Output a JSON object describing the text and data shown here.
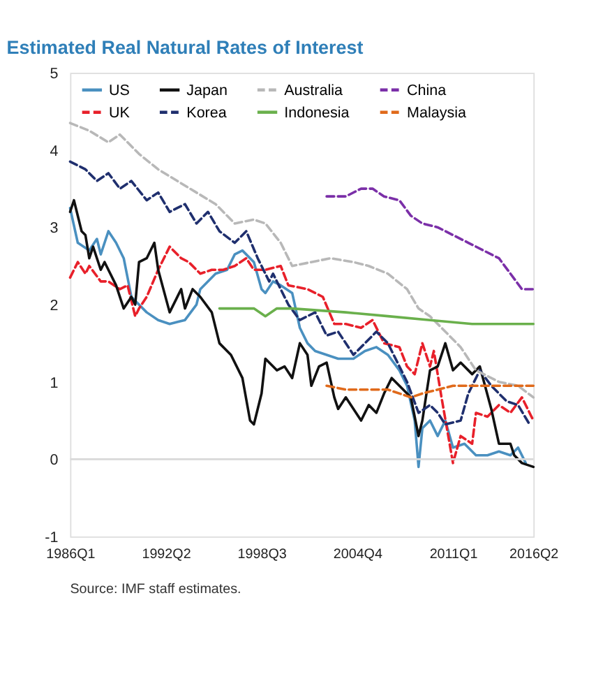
{
  "chart_data": {
    "type": "line",
    "title": "Estimated Real Natural Rates of Interest",
    "categories": [
      "1986Q1",
      null,
      null,
      null,
      null,
      null,
      null,
      null,
      null,
      null,
      null,
      null,
      null,
      null,
      null,
      null,
      null,
      null,
      null,
      null,
      null,
      null,
      null,
      null,
      null,
      "1992Q2",
      null,
      null,
      null,
      null,
      null,
      null,
      null,
      null,
      null,
      null,
      null,
      null,
      null,
      null,
      null,
      null,
      null,
      null,
      null,
      null,
      null,
      null,
      null,
      null,
      "1998Q3",
      null,
      null,
      null,
      null,
      null,
      null,
      null,
      null,
      null,
      null,
      null,
      null,
      null,
      null,
      null,
      null,
      null,
      null,
      null,
      null,
      null,
      null,
      null,
      null,
      "2004Q4",
      null,
      null,
      null,
      null,
      null,
      null,
      null,
      null,
      null,
      null,
      null,
      null,
      null,
      null,
      null,
      null,
      null,
      null,
      null,
      null,
      null,
      null,
      null,
      null,
      "2011Q1",
      null,
      null,
      null,
      null,
      null,
      null,
      null,
      null,
      null,
      null,
      null,
      null,
      null,
      null,
      null,
      null,
      null,
      null,
      null,
      null,
      "2016Q2"
    ],
    "ylim": [
      -1,
      5
    ],
    "yticks": [
      -1,
      0,
      1,
      2,
      3,
      4,
      5
    ],
    "legend": "top",
    "ref_lines": [
      {
        "axis": "y",
        "value": 0,
        "color": "#d9d9d9"
      }
    ],
    "annotations": [
      "Source: IMF staff estimates."
    ],
    "series": [
      {
        "name": "US",
        "color": "#4a90c0",
        "line_style": "solid",
        "values": [
          3.25,
          null,
          2.8,
          null,
          null,
          2.7,
          null,
          2.85,
          2.65,
          null,
          2.95,
          null,
          2.8,
          null,
          2.6,
          null,
          2.1,
          null,
          null,
          null,
          1.9,
          null,
          null,
          1.8,
          null,
          null,
          1.75,
          null,
          null,
          null,
          1.8,
          null,
          null,
          2.0,
          2.2,
          null,
          null,
          null,
          2.4,
          null,
          null,
          2.45,
          null,
          2.65,
          null,
          2.7,
          null,
          null,
          2.55,
          null,
          2.2,
          2.15,
          null,
          2.3,
          null,
          2.25,
          null,
          null,
          2.15,
          null,
          1.7,
          null,
          1.5,
          null,
          1.4,
          null,
          null,
          1.35,
          null,
          null,
          1.3,
          null,
          null,
          null,
          1.3,
          null,
          null,
          1.4,
          null,
          null,
          1.45,
          null,
          null,
          1.35,
          null,
          null,
          1.15,
          null,
          0.95,
          null,
          0.5,
          -0.1,
          0.4,
          null,
          0.5,
          null,
          0.3,
          null,
          0.5,
          null,
          0.15,
          null,
          null,
          0.2,
          null,
          null,
          0.05,
          null,
          null,
          0.05,
          null,
          null,
          0.1,
          null,
          null,
          0.05,
          null,
          0.15,
          null,
          -0.05,
          null,
          null
        ]
      },
      {
        "name": "UK",
        "color": "#e8202a",
        "line_style": "dashed",
        "values": [
          2.35,
          null,
          2.55,
          null,
          2.4,
          2.5,
          null,
          null,
          2.3,
          null,
          2.3,
          null,
          null,
          2.2,
          null,
          2.25,
          null,
          1.85,
          1.95,
          null,
          2.1,
          null,
          null,
          2.45,
          null,
          null,
          2.75,
          null,
          null,
          2.6,
          null,
          2.55,
          null,
          null,
          2.4,
          null,
          null,
          2.45,
          null,
          null,
          2.45,
          null,
          null,
          2.5,
          null,
          null,
          2.6,
          null,
          2.45,
          null,
          null,
          2.45,
          null,
          null,
          null,
          2.5,
          null,
          2.25,
          null,
          null,
          null,
          null,
          2.2,
          null,
          null,
          null,
          2.1,
          null,
          null,
          1.75,
          null,
          null,
          1.75,
          null,
          null,
          null,
          1.7,
          null,
          null,
          1.8,
          null,
          null,
          1.5,
          null,
          null,
          null,
          1.45,
          null,
          1.2,
          null,
          1.1,
          null,
          1.5,
          null,
          1.2,
          1.4,
          null,
          0.8,
          null,
          null,
          -0.05,
          null,
          0.3,
          null,
          null,
          0.2,
          0.6,
          null,
          null,
          0.55,
          null,
          null,
          0.7,
          null,
          null,
          0.6,
          null,
          null,
          0.8,
          null,
          null,
          0.5
        ]
      },
      {
        "name": "Japan",
        "color": "#111111",
        "line_style": "solid",
        "values": [
          3.2,
          3.35,
          null,
          2.95,
          2.9,
          2.6,
          2.75,
          null,
          2.45,
          2.55,
          null,
          null,
          2.25,
          null,
          1.95,
          null,
          2.1,
          2.0,
          2.55,
          null,
          2.6,
          null,
          2.8,
          2.45,
          null,
          null,
          1.9,
          null,
          null,
          2.2,
          1.95,
          null,
          2.2,
          null,
          2.1,
          null,
          null,
          1.9,
          null,
          1.5,
          null,
          null,
          1.35,
          null,
          null,
          1.05,
          null,
          0.5,
          0.45,
          null,
          0.85,
          1.3,
          null,
          null,
          1.15,
          null,
          1.2,
          null,
          1.05,
          null,
          1.5,
          null,
          1.35,
          0.95,
          null,
          1.2,
          null,
          1.25,
          null,
          0.8,
          0.65,
          null,
          0.8,
          null,
          null,
          null,
          0.5,
          null,
          0.7,
          null,
          0.6,
          null,
          0.85,
          null,
          1.05,
          null,
          0.95,
          null,
          null,
          0.8,
          null,
          0.3,
          0.5,
          null,
          1.15,
          null,
          1.2,
          null,
          1.5,
          null,
          1.15,
          null,
          1.25,
          null,
          null,
          1.1,
          null,
          1.2,
          null,
          null,
          0.65,
          null,
          0.2,
          null,
          null,
          0.2,
          0.05,
          null,
          -0.05,
          null,
          null,
          -0.1
        ]
      },
      {
        "name": "Korea",
        "color": "#1f2f6e",
        "line_style": "dashed",
        "values": [
          3.85,
          null,
          null,
          null,
          3.75,
          null,
          null,
          3.6,
          null,
          null,
          3.7,
          null,
          null,
          3.5,
          null,
          null,
          3.6,
          null,
          null,
          null,
          3.35,
          null,
          null,
          3.45,
          null,
          null,
          3.2,
          null,
          null,
          null,
          3.3,
          null,
          null,
          3.05,
          null,
          null,
          3.2,
          null,
          null,
          2.95,
          null,
          null,
          null,
          2.8,
          null,
          null,
          2.95,
          null,
          null,
          2.6,
          null,
          null,
          2.3,
          2.4,
          null,
          null,
          null,
          2.0,
          null,
          null,
          1.8,
          null,
          null,
          null,
          1.9,
          null,
          null,
          1.6,
          null,
          null,
          1.65,
          null,
          null,
          null,
          1.35,
          null,
          null,
          1.5,
          null,
          null,
          1.65,
          null,
          null,
          1.5,
          null,
          null,
          1.2,
          null,
          1.0,
          null,
          null,
          0.6,
          null,
          null,
          0.7,
          null,
          0.6,
          null,
          0.45,
          null,
          null,
          null,
          0.5,
          null,
          0.85,
          null,
          null,
          1.15,
          null,
          null,
          0.95,
          null,
          null,
          null,
          0.75,
          null,
          null,
          0.7,
          null,
          null,
          0.45,
          null
        ]
      },
      {
        "name": "Australia",
        "color": "#b8b8b8",
        "line_style": "dashed",
        "values": [
          4.35,
          null,
          null,
          null,
          null,
          4.25,
          null,
          null,
          null,
          null,
          4.1,
          null,
          null,
          4.2,
          null,
          null,
          null,
          null,
          3.95,
          null,
          null,
          null,
          null,
          3.75,
          null,
          null,
          null,
          null,
          3.6,
          null,
          null,
          null,
          null,
          3.45,
          null,
          null,
          null,
          null,
          3.3,
          null,
          null,
          null,
          null,
          3.05,
          null,
          null,
          null,
          null,
          3.1,
          null,
          null,
          3.05,
          null,
          null,
          null,
          2.8,
          null,
          null,
          2.5,
          null,
          null,
          null,
          null,
          2.55,
          null,
          null,
          null,
          null,
          2.6,
          null,
          null,
          null,
          null,
          null,
          2.55,
          null,
          null,
          null,
          2.5,
          null,
          null,
          null,
          null,
          2.4,
          null,
          null,
          null,
          null,
          2.2,
          null,
          null,
          1.95,
          null,
          null,
          1.85,
          null,
          null,
          1.7,
          null,
          null,
          null,
          null,
          1.45,
          null,
          null,
          null,
          1.15,
          null,
          null,
          null,
          null,
          null,
          1.0,
          null,
          null,
          null,
          null,
          0.95,
          null,
          null,
          null,
          0.8
        ]
      },
      {
        "name": "Indonesia",
        "color": "#6ab04c",
        "line_style": "solid",
        "values": [
          null,
          null,
          null,
          null,
          null,
          null,
          null,
          null,
          null,
          null,
          null,
          null,
          null,
          null,
          null,
          null,
          null,
          null,
          null,
          null,
          null,
          null,
          null,
          null,
          null,
          null,
          null,
          null,
          null,
          null,
          null,
          null,
          null,
          null,
          null,
          null,
          null,
          null,
          null,
          1.95,
          null,
          null,
          null,
          null,
          1.95,
          null,
          null,
          null,
          1.95,
          null,
          null,
          1.85,
          null,
          null,
          1.95,
          null,
          null,
          null,
          1.95,
          null,
          null,
          null,
          null,
          null,
          null,
          null,
          null,
          null,
          null,
          null,
          null,
          null,
          1.9,
          null,
          null,
          null,
          null,
          null,
          null,
          null,
          null,
          null,
          null,
          1.85,
          null,
          null,
          null,
          null,
          null,
          null,
          null,
          null,
          null,
          null,
          1.8,
          null,
          null,
          null,
          null,
          null,
          null,
          null,
          null,
          null,
          null,
          1.75,
          null,
          null,
          null,
          null,
          null,
          null,
          null,
          null,
          null,
          null,
          null,
          null,
          null,
          null,
          null,
          1.75
        ]
      },
      {
        "name": "China",
        "color": "#7b2fa8",
        "line_style": "dashed",
        "values": [
          null,
          null,
          null,
          null,
          null,
          null,
          null,
          null,
          null,
          null,
          null,
          null,
          null,
          null,
          null,
          null,
          null,
          null,
          null,
          null,
          null,
          null,
          null,
          null,
          null,
          null,
          null,
          null,
          null,
          null,
          null,
          null,
          null,
          null,
          null,
          null,
          null,
          null,
          null,
          null,
          null,
          null,
          null,
          null,
          null,
          null,
          null,
          null,
          null,
          null,
          null,
          null,
          null,
          null,
          null,
          null,
          null,
          null,
          null,
          null,
          null,
          null,
          null,
          null,
          null,
          null,
          null,
          3.4,
          null,
          3.4,
          null,
          null,
          3.4,
          null,
          null,
          null,
          3.5,
          null,
          null,
          3.5,
          null,
          null,
          3.4,
          null,
          null,
          null,
          3.35,
          null,
          null,
          3.15,
          null,
          null,
          3.05,
          null,
          null,
          null,
          3.0,
          null,
          null,
          null,
          2.9,
          null,
          null,
          null,
          2.8,
          null,
          null,
          null,
          2.7,
          null,
          null,
          null,
          2.6,
          null,
          null,
          2.4,
          null,
          null,
          2.2,
          null,
          null,
          2.2
        ]
      },
      {
        "name": "Malaysia",
        "color": "#e06a1b",
        "line_style": "dashed",
        "values": [
          null,
          null,
          null,
          null,
          null,
          null,
          null,
          null,
          null,
          null,
          null,
          null,
          null,
          null,
          null,
          null,
          null,
          null,
          null,
          null,
          null,
          null,
          null,
          null,
          null,
          null,
          null,
          null,
          null,
          null,
          null,
          null,
          null,
          null,
          null,
          null,
          null,
          null,
          null,
          null,
          null,
          null,
          null,
          null,
          null,
          null,
          null,
          null,
          null,
          null,
          null,
          null,
          null,
          null,
          null,
          null,
          null,
          null,
          null,
          null,
          null,
          null,
          null,
          null,
          null,
          null,
          null,
          0.95,
          null,
          null,
          null,
          null,
          0.9,
          null,
          null,
          null,
          null,
          null,
          0.9,
          null,
          null,
          null,
          null,
          0.9,
          null,
          null,
          null,
          null,
          null,
          0.8,
          null,
          null,
          0.85,
          null,
          null,
          null,
          0.9,
          null,
          null,
          null,
          0.95,
          null,
          null,
          null,
          null,
          0.95,
          null,
          null,
          null,
          0.95,
          null,
          null,
          null,
          null,
          0.95,
          null,
          null,
          null,
          0.95,
          null,
          null,
          0.95
        ]
      }
    ]
  }
}
